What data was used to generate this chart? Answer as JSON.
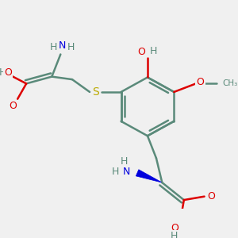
{
  "bg_color": "#f0f0f0",
  "bond_color": "#5a8a7a",
  "bond_width": 1.8,
  "atom_colors": {
    "N": "#0000dd",
    "O": "#dd0000",
    "S": "#bbaa00",
    "C": "#5a8a7a",
    "H": "#5a8a7a"
  },
  "figsize": [
    3.0,
    3.0
  ],
  "dpi": 100
}
